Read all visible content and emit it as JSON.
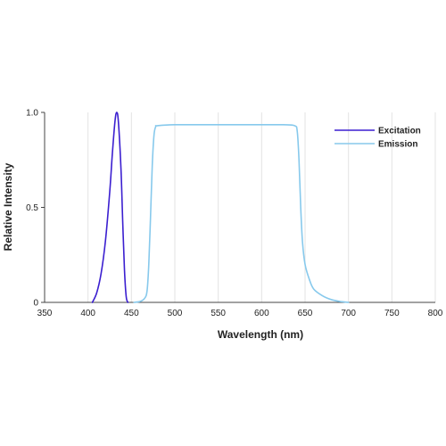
{
  "chart_data": {
    "type": "line",
    "title": "",
    "xlabel": "Wavelength (nm)",
    "ylabel": "Relative Intensity",
    "xlim": [
      350,
      800
    ],
    "ylim": [
      0,
      1
    ],
    "x_ticks": [
      "350",
      "400",
      "450",
      "500",
      "550",
      "600",
      "650",
      "700",
      "750",
      "800"
    ],
    "y_ticks": [
      "0",
      "0.5",
      "1.0"
    ],
    "grid": "vertical",
    "legend_position": "top-right",
    "series": [
      {
        "name": "Excitation",
        "color": "#3b1fd0",
        "points": [
          [
            405,
            0
          ],
          [
            410,
            0.05
          ],
          [
            415,
            0.15
          ],
          [
            420,
            0.32
          ],
          [
            425,
            0.58
          ],
          [
            428,
            0.78
          ],
          [
            431,
            0.95
          ],
          [
            433,
            1.0
          ],
          [
            435,
            0.95
          ],
          [
            438,
            0.7
          ],
          [
            440,
            0.42
          ],
          [
            442,
            0.17
          ],
          [
            444,
            0.03
          ],
          [
            446,
            0
          ]
        ]
      },
      {
        "name": "Emission",
        "color": "#87c9ec",
        "points": [
          [
            453,
            0
          ],
          [
            460,
            0.005
          ],
          [
            465,
            0.02
          ],
          [
            468,
            0.06
          ],
          [
            470,
            0.2
          ],
          [
            472,
            0.45
          ],
          [
            474,
            0.72
          ],
          [
            476,
            0.88
          ],
          [
            478,
            0.925
          ],
          [
            480,
            0.93
          ],
          [
            500,
            0.935
          ],
          [
            550,
            0.935
          ],
          [
            600,
            0.935
          ],
          [
            625,
            0.935
          ],
          [
            638,
            0.93
          ],
          [
            641,
            0.9
          ],
          [
            643,
            0.75
          ],
          [
            645,
            0.5
          ],
          [
            647,
            0.32
          ],
          [
            650,
            0.2
          ],
          [
            655,
            0.12
          ],
          [
            660,
            0.07
          ],
          [
            670,
            0.035
          ],
          [
            680,
            0.015
          ],
          [
            690,
            0.005
          ],
          [
            700,
            0
          ]
        ]
      }
    ]
  }
}
